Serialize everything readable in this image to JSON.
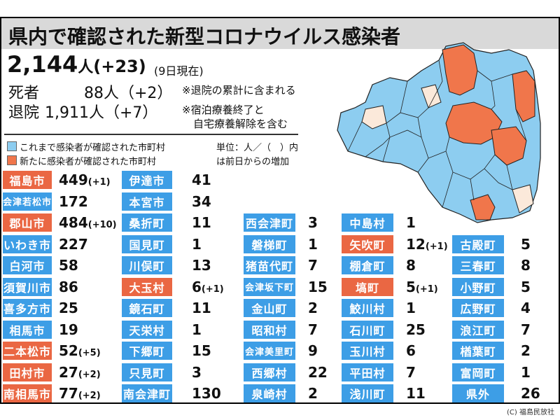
{
  "title": "県内で確認された新型コロナウイルス感染者",
  "total": {
    "value": "2,144",
    "unit": "人",
    "increase": "(+23)",
    "date": "(9日現在)"
  },
  "deaths": {
    "label": "死者",
    "value": "88人（+2）"
  },
  "recovered": {
    "label": "退院",
    "value": "1,911人（+7）"
  },
  "notes": [
    "※退院の累計に含まれる",
    "※宿泊療養終了と",
    "自宅療養解除を含む"
  ],
  "legend": {
    "blue": "これまで感染者が確認された市町村",
    "orange": "新たに感染者が確認された市町村",
    "unit_line1": "単位：人／（　）内",
    "unit_line2": "は前日からの増加"
  },
  "colors": {
    "blue": "#3d9ee6",
    "red": "#ea6743",
    "map_blue": "#8dcdf0",
    "map_orange": "#f0764b",
    "map_none": "#fbe9da"
  },
  "municipalities": [
    {
      "name": "福島市",
      "value": "449",
      "inc": "(+1)",
      "new": true,
      "col": 0,
      "row": 0
    },
    {
      "name": "会津若松市",
      "value": "172",
      "inc": "",
      "new": false,
      "col": 0,
      "row": 1
    },
    {
      "name": "郡山市",
      "value": "484",
      "inc": "(+10)",
      "new": true,
      "col": 0,
      "row": 2
    },
    {
      "name": "いわき市",
      "value": "227",
      "inc": "",
      "new": false,
      "col": 0,
      "row": 3
    },
    {
      "name": "白河市",
      "value": "58",
      "inc": "",
      "new": false,
      "col": 0,
      "row": 4
    },
    {
      "name": "須賀川市",
      "value": "86",
      "inc": "",
      "new": false,
      "col": 0,
      "row": 5
    },
    {
      "name": "喜多方市",
      "value": "25",
      "inc": "",
      "new": false,
      "col": 0,
      "row": 6
    },
    {
      "name": "相馬市",
      "value": "19",
      "inc": "",
      "new": false,
      "col": 0,
      "row": 7
    },
    {
      "name": "二本松市",
      "value": "52",
      "inc": "(+5)",
      "new": true,
      "col": 0,
      "row": 8
    },
    {
      "name": "田村市",
      "value": "27",
      "inc": "(+2)",
      "new": true,
      "col": 0,
      "row": 9
    },
    {
      "name": "南相馬市",
      "value": "77",
      "inc": "(+2)",
      "new": true,
      "col": 0,
      "row": 10
    },
    {
      "name": "伊達市",
      "value": "41",
      "inc": "",
      "new": false,
      "col": 1,
      "row": 0
    },
    {
      "name": "本宮市",
      "value": "34",
      "inc": "",
      "new": false,
      "col": 1,
      "row": 1
    },
    {
      "name": "桑折町",
      "value": "11",
      "inc": "",
      "new": false,
      "col": 1,
      "row": 2
    },
    {
      "name": "国見町",
      "value": "1",
      "inc": "",
      "new": false,
      "col": 1,
      "row": 3
    },
    {
      "name": "川俣町",
      "value": "13",
      "inc": "",
      "new": false,
      "col": 1,
      "row": 4
    },
    {
      "name": "大玉村",
      "value": "6",
      "inc": "(+1)",
      "new": true,
      "col": 1,
      "row": 5
    },
    {
      "name": "鏡石町",
      "value": "11",
      "inc": "",
      "new": false,
      "col": 1,
      "row": 6
    },
    {
      "name": "天栄村",
      "value": "1",
      "inc": "",
      "new": false,
      "col": 1,
      "row": 7
    },
    {
      "name": "下郷町",
      "value": "15",
      "inc": "",
      "new": false,
      "col": 1,
      "row": 8
    },
    {
      "name": "只見町",
      "value": "3",
      "inc": "",
      "new": false,
      "col": 1,
      "row": 9
    },
    {
      "name": "南会津町",
      "value": "130",
      "inc": "",
      "new": false,
      "col": 1,
      "row": 10
    },
    {
      "name": "西会津町",
      "value": "3",
      "inc": "",
      "new": false,
      "col": 2,
      "row": 2
    },
    {
      "name": "磐梯町",
      "value": "1",
      "inc": "",
      "new": false,
      "col": 2,
      "row": 3
    },
    {
      "name": "猪苗代町",
      "value": "7",
      "inc": "",
      "new": false,
      "col": 2,
      "row": 4
    },
    {
      "name": "会津坂下町",
      "value": "15",
      "inc": "",
      "new": false,
      "col": 2,
      "row": 5
    },
    {
      "name": "金山町",
      "value": "2",
      "inc": "",
      "new": false,
      "col": 2,
      "row": 6
    },
    {
      "name": "昭和村",
      "value": "7",
      "inc": "",
      "new": false,
      "col": 2,
      "row": 7
    },
    {
      "name": "会津美里町",
      "value": "9",
      "inc": "",
      "new": false,
      "col": 2,
      "row": 8
    },
    {
      "name": "西郷村",
      "value": "22",
      "inc": "",
      "new": false,
      "col": 2,
      "row": 9
    },
    {
      "name": "泉崎村",
      "value": "2",
      "inc": "",
      "new": false,
      "col": 2,
      "row": 10
    },
    {
      "name": "中島村",
      "value": "1",
      "inc": "",
      "new": false,
      "col": 3,
      "row": 2
    },
    {
      "name": "矢吹町",
      "value": "12",
      "inc": "(+1)",
      "new": true,
      "col": 3,
      "row": 3
    },
    {
      "name": "棚倉町",
      "value": "8",
      "inc": "",
      "new": false,
      "col": 3,
      "row": 4
    },
    {
      "name": "塙町",
      "value": "5",
      "inc": "(+1)",
      "new": true,
      "col": 3,
      "row": 5
    },
    {
      "name": "鮫川村",
      "value": "1",
      "inc": "",
      "new": false,
      "col": 3,
      "row": 6
    },
    {
      "name": "石川町",
      "value": "25",
      "inc": "",
      "new": false,
      "col": 3,
      "row": 7
    },
    {
      "name": "玉川村",
      "value": "6",
      "inc": "",
      "new": false,
      "col": 3,
      "row": 8
    },
    {
      "name": "平田村",
      "value": "7",
      "inc": "",
      "new": false,
      "col": 3,
      "row": 9
    },
    {
      "name": "浅川町",
      "value": "11",
      "inc": "",
      "new": false,
      "col": 3,
      "row": 10
    },
    {
      "name": "古殿町",
      "value": "5",
      "inc": "",
      "new": false,
      "col": 4,
      "row": 3
    },
    {
      "name": "三春町",
      "value": "8",
      "inc": "",
      "new": false,
      "col": 4,
      "row": 4
    },
    {
      "name": "小野町",
      "value": "5",
      "inc": "",
      "new": false,
      "col": 4,
      "row": 5
    },
    {
      "name": "広野町",
      "value": "4",
      "inc": "",
      "new": false,
      "col": 4,
      "row": 6
    },
    {
      "name": "浪江町",
      "value": "7",
      "inc": "",
      "new": false,
      "col": 4,
      "row": 7
    },
    {
      "name": "楢葉町",
      "value": "2",
      "inc": "",
      "new": false,
      "col": 4,
      "row": 8
    },
    {
      "name": "富岡町",
      "value": "1",
      "inc": "",
      "new": false,
      "col": 4,
      "row": 9
    },
    {
      "name": "県外",
      "value": "26",
      "inc": "",
      "new": false,
      "col": 4,
      "row": 10
    }
  ],
  "credit": "(C) 福島民放社"
}
